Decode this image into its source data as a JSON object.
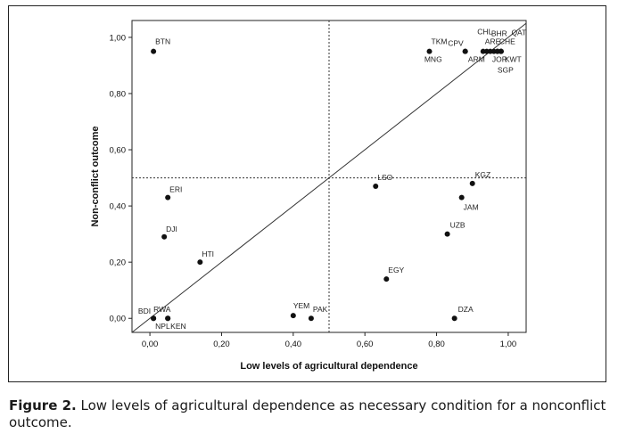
{
  "chart_data": {
    "type": "scatter",
    "xlabel": "Low levels of agricultural dependence",
    "ylabel": "Non-conflict outcome",
    "xlim": [
      -0.05,
      1.05
    ],
    "ylim": [
      -0.05,
      1.06
    ],
    "xticks": [
      "0,00",
      "0,20",
      "0,40",
      "0,60",
      "0,80",
      "1,00"
    ],
    "yticks": [
      "0,00",
      "0,20",
      "0,40",
      "0,60",
      "0,80",
      "1,00"
    ],
    "reference_lines": {
      "diagonal": true,
      "x": 0.5,
      "y": 0.5
    },
    "points": [
      {
        "label": "BTN",
        "x": 0.01,
        "y": 0.95
      },
      {
        "label": "TKM",
        "x": 0.78,
        "y": 0.95
      },
      {
        "label": "CPV",
        "x": 0.88,
        "y": 0.95
      },
      {
        "label": "MNG",
        "x": 0.88,
        "y": 0.95
      },
      {
        "label": "ARE",
        "x": 0.93,
        "y": 0.95
      },
      {
        "label": "ARM",
        "x": 0.94,
        "y": 0.95
      },
      {
        "label": "CHL",
        "x": 0.95,
        "y": 0.95
      },
      {
        "label": "BHR",
        "x": 0.96,
        "y": 0.95
      },
      {
        "label": "QAT",
        "x": 0.98,
        "y": 0.95
      },
      {
        "label": "CHE",
        "x": 0.97,
        "y": 0.95
      },
      {
        "label": "JOR",
        "x": 0.97,
        "y": 0.95
      },
      {
        "label": "KWT",
        "x": 0.98,
        "y": 0.95
      },
      {
        "label": "SGP",
        "x": 0.98,
        "y": 0.95
      },
      {
        "label": "LSO",
        "x": 0.63,
        "y": 0.47
      },
      {
        "label": "KGZ",
        "x": 0.9,
        "y": 0.48
      },
      {
        "label": "JAM",
        "x": 0.87,
        "y": 0.43
      },
      {
        "label": "UZB",
        "x": 0.83,
        "y": 0.3
      },
      {
        "label": "EGY",
        "x": 0.66,
        "y": 0.14
      },
      {
        "label": "DZA",
        "x": 0.85,
        "y": 0.0
      },
      {
        "label": "ERI",
        "x": 0.05,
        "y": 0.43
      },
      {
        "label": "DJI",
        "x": 0.04,
        "y": 0.29
      },
      {
        "label": "HTI",
        "x": 0.14,
        "y": 0.2
      },
      {
        "label": "BDI",
        "x": 0.01,
        "y": 0.0
      },
      {
        "label": "RWA",
        "x": 0.01,
        "y": 0.0
      },
      {
        "label": "NPL",
        "x": 0.05,
        "y": 0.0
      },
      {
        "label": "KEN",
        "x": 0.05,
        "y": 0.0
      },
      {
        "label": "YEM",
        "x": 0.4,
        "y": 0.01
      },
      {
        "label": "PAK",
        "x": 0.45,
        "y": 0.0
      }
    ]
  },
  "caption": {
    "label": "Figure 2.",
    "text": "Low levels of agricultural dependence as necessary condition for a nonconflict outcome."
  }
}
